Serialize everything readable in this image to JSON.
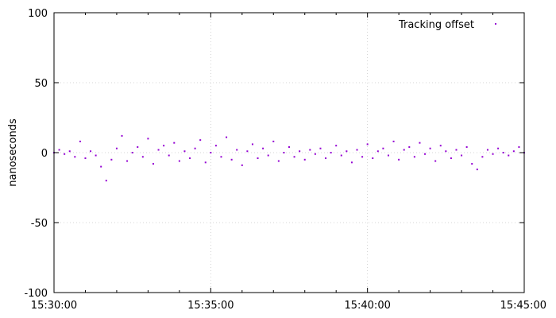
{
  "chart_data": {
    "type": "scatter",
    "title": "",
    "xlabel": "",
    "ylabel": "nanoseconds",
    "ylim": [
      -100,
      100
    ],
    "xlim": [
      "15:30:00",
      "15:45:00"
    ],
    "x_ticks": [
      "15:30:00",
      "15:35:00",
      "15:40:00",
      "15:45:00"
    ],
    "y_ticks": [
      100,
      50,
      0,
      -50,
      -100
    ],
    "grid": true,
    "legend_position": "top-right",
    "series": [
      {
        "name": "Tracking offset",
        "color": "#9400d3",
        "marker": "dot",
        "points": [
          {
            "x": "15:30:00",
            "y": 0
          },
          {
            "x": "15:30:10",
            "y": 2
          },
          {
            "x": "15:30:20",
            "y": -1
          },
          {
            "x": "15:30:30",
            "y": 1
          },
          {
            "x": "15:30:40",
            "y": -3
          },
          {
            "x": "15:30:50",
            "y": 8
          },
          {
            "x": "15:31:00",
            "y": -4
          },
          {
            "x": "15:31:10",
            "y": 1
          },
          {
            "x": "15:31:20",
            "y": -2
          },
          {
            "x": "15:31:30",
            "y": -10
          },
          {
            "x": "15:31:40",
            "y": -20
          },
          {
            "x": "15:31:50",
            "y": -5
          },
          {
            "x": "15:32:00",
            "y": 3
          },
          {
            "x": "15:32:10",
            "y": 12
          },
          {
            "x": "15:32:20",
            "y": -6
          },
          {
            "x": "15:32:30",
            "y": 0
          },
          {
            "x": "15:32:40",
            "y": 4
          },
          {
            "x": "15:32:50",
            "y": -3
          },
          {
            "x": "15:33:00",
            "y": 10
          },
          {
            "x": "15:33:10",
            "y": -8
          },
          {
            "x": "15:33:20",
            "y": 2
          },
          {
            "x": "15:33:30",
            "y": 5
          },
          {
            "x": "15:33:40",
            "y": -2
          },
          {
            "x": "15:33:50",
            "y": 7
          },
          {
            "x": "15:34:00",
            "y": -6
          },
          {
            "x": "15:34:10",
            "y": 1
          },
          {
            "x": "15:34:20",
            "y": -4
          },
          {
            "x": "15:34:30",
            "y": 3
          },
          {
            "x": "15:34:40",
            "y": 9
          },
          {
            "x": "15:34:50",
            "y": -7
          },
          {
            "x": "15:35:00",
            "y": 0
          },
          {
            "x": "15:35:10",
            "y": 5
          },
          {
            "x": "15:35:20",
            "y": -3
          },
          {
            "x": "15:35:30",
            "y": 11
          },
          {
            "x": "15:35:40",
            "y": -5
          },
          {
            "x": "15:35:50",
            "y": 2
          },
          {
            "x": "15:36:00",
            "y": -9
          },
          {
            "x": "15:36:10",
            "y": 1
          },
          {
            "x": "15:36:20",
            "y": 6
          },
          {
            "x": "15:36:30",
            "y": -4
          },
          {
            "x": "15:36:40",
            "y": 3
          },
          {
            "x": "15:36:50",
            "y": -2
          },
          {
            "x": "15:37:00",
            "y": 8
          },
          {
            "x": "15:37:10",
            "y": -6
          },
          {
            "x": "15:37:20",
            "y": 0
          },
          {
            "x": "15:37:30",
            "y": 4
          },
          {
            "x": "15:37:40",
            "y": -3
          },
          {
            "x": "15:37:50",
            "y": 1
          },
          {
            "x": "15:38:00",
            "y": -5
          },
          {
            "x": "15:38:10",
            "y": 2
          },
          {
            "x": "15:38:20",
            "y": -1
          },
          {
            "x": "15:38:30",
            "y": 3
          },
          {
            "x": "15:38:40",
            "y": -4
          },
          {
            "x": "15:38:50",
            "y": 0
          },
          {
            "x": "15:39:00",
            "y": 5
          },
          {
            "x": "15:39:10",
            "y": -2
          },
          {
            "x": "15:39:20",
            "y": 1
          },
          {
            "x": "15:39:30",
            "y": -7
          },
          {
            "x": "15:39:40",
            "y": 2
          },
          {
            "x": "15:39:50",
            "y": -3
          },
          {
            "x": "15:40:00",
            "y": 6
          },
          {
            "x": "15:40:10",
            "y": -4
          },
          {
            "x": "15:40:20",
            "y": 1
          },
          {
            "x": "15:40:30",
            "y": 3
          },
          {
            "x": "15:40:40",
            "y": -2
          },
          {
            "x": "15:40:50",
            "y": 8
          },
          {
            "x": "15:41:00",
            "y": -5
          },
          {
            "x": "15:41:10",
            "y": 2
          },
          {
            "x": "15:41:20",
            "y": 4
          },
          {
            "x": "15:41:30",
            "y": -3
          },
          {
            "x": "15:41:40",
            "y": 7
          },
          {
            "x": "15:41:50",
            "y": -1
          },
          {
            "x": "15:42:00",
            "y": 3
          },
          {
            "x": "15:42:10",
            "y": -6
          },
          {
            "x": "15:42:20",
            "y": 5
          },
          {
            "x": "15:42:30",
            "y": 1
          },
          {
            "x": "15:42:40",
            "y": -4
          },
          {
            "x": "15:42:50",
            "y": 2
          },
          {
            "x": "15:43:00",
            "y": -2
          },
          {
            "x": "15:43:10",
            "y": 4
          },
          {
            "x": "15:43:20",
            "y": -8
          },
          {
            "x": "15:43:30",
            "y": -12
          },
          {
            "x": "15:43:40",
            "y": -3
          },
          {
            "x": "15:43:50",
            "y": 2
          },
          {
            "x": "15:44:00",
            "y": -1
          },
          {
            "x": "15:44:10",
            "y": 3
          },
          {
            "x": "15:44:20",
            "y": 0
          },
          {
            "x": "15:44:30",
            "y": -2
          },
          {
            "x": "15:44:40",
            "y": 1
          },
          {
            "x": "15:44:50",
            "y": 4
          },
          {
            "x": "15:45:00",
            "y": 0
          }
        ]
      }
    ]
  }
}
